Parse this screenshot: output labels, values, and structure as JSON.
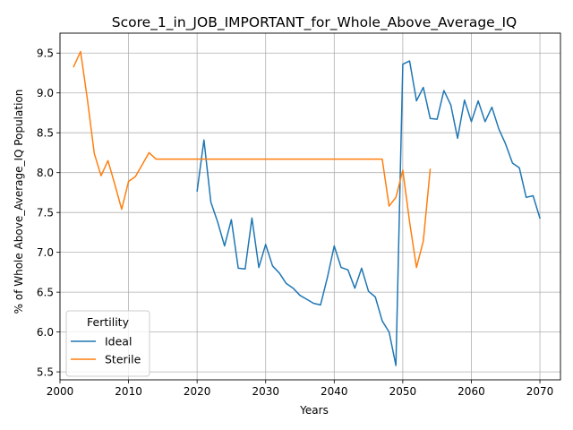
{
  "chart_data": {
    "type": "line",
    "title": "Score_1_in_JOB_IMPORTANT_for_Whole_Above_Average_IQ",
    "xlabel": "Years",
    "ylabel": "% of Whole Above_Average_IQ Population",
    "xlim": [
      2000,
      2073
    ],
    "ylim": [
      5.4,
      9.75
    ],
    "xticks": [
      2000,
      2010,
      2020,
      2030,
      2040,
      2050,
      2060,
      2070
    ],
    "yticks": [
      5.5,
      6.0,
      6.5,
      7.0,
      7.5,
      8.0,
      8.5,
      9.0,
      9.5
    ],
    "ytick_labels": [
      "5.5",
      "6.0",
      "6.5",
      "7.0",
      "7.5",
      "8.0",
      "8.5",
      "9.0",
      "9.5"
    ],
    "grid": true,
    "legend": {
      "title": "Fertility",
      "position": "lower-left"
    },
    "series": [
      {
        "name": "Ideal",
        "color": "#1f77b4",
        "x": [
          2020,
          2021,
          2022,
          2023,
          2024,
          2025,
          2026,
          2027,
          2028,
          2029,
          2030,
          2031,
          2032,
          2033,
          2034,
          2035,
          2036,
          2037,
          2038,
          2039,
          2040,
          2041,
          2042,
          2043,
          2044,
          2045,
          2046,
          2047,
          2048,
          2049,
          2050,
          2051,
          2052,
          2053,
          2054,
          2055,
          2056,
          2057,
          2058,
          2059,
          2060,
          2061,
          2062,
          2063,
          2064,
          2065,
          2066,
          2067,
          2068,
          2069,
          2070
        ],
        "y": [
          7.77,
          8.41,
          7.63,
          7.38,
          7.08,
          7.41,
          6.8,
          6.79,
          7.43,
          6.81,
          7.1,
          6.83,
          6.74,
          6.61,
          6.55,
          6.46,
          6.41,
          6.36,
          6.34,
          6.68,
          7.08,
          6.81,
          6.78,
          6.55,
          6.8,
          6.51,
          6.44,
          6.14,
          6.0,
          5.58,
          9.36,
          9.4,
          8.9,
          9.07,
          8.68,
          8.67,
          9.03,
          8.85,
          8.43,
          8.91,
          8.64,
          8.9,
          8.64,
          8.82,
          8.55,
          8.36,
          8.12,
          8.06,
          7.69,
          7.71,
          7.43
        ]
      },
      {
        "name": "Sterile",
        "color": "#ff7f0e",
        "x": [
          2002,
          2003,
          2004,
          2005,
          2006,
          2007,
          2008,
          2009,
          2010,
          2011,
          2012,
          2013,
          2014,
          2015,
          2020,
          2025,
          2030,
          2035,
          2040,
          2045,
          2047,
          2048,
          2049,
          2050,
          2051,
          2052,
          2053,
          2054
        ],
        "y": [
          9.33,
          9.52,
          8.92,
          8.24,
          7.96,
          8.15,
          7.85,
          7.54,
          7.89,
          7.95,
          8.1,
          8.25,
          8.17,
          8.17,
          8.17,
          8.17,
          8.17,
          8.17,
          8.17,
          8.17,
          8.17,
          7.58,
          7.69,
          8.03,
          7.38,
          6.81,
          7.14,
          8.04
        ]
      }
    ]
  }
}
